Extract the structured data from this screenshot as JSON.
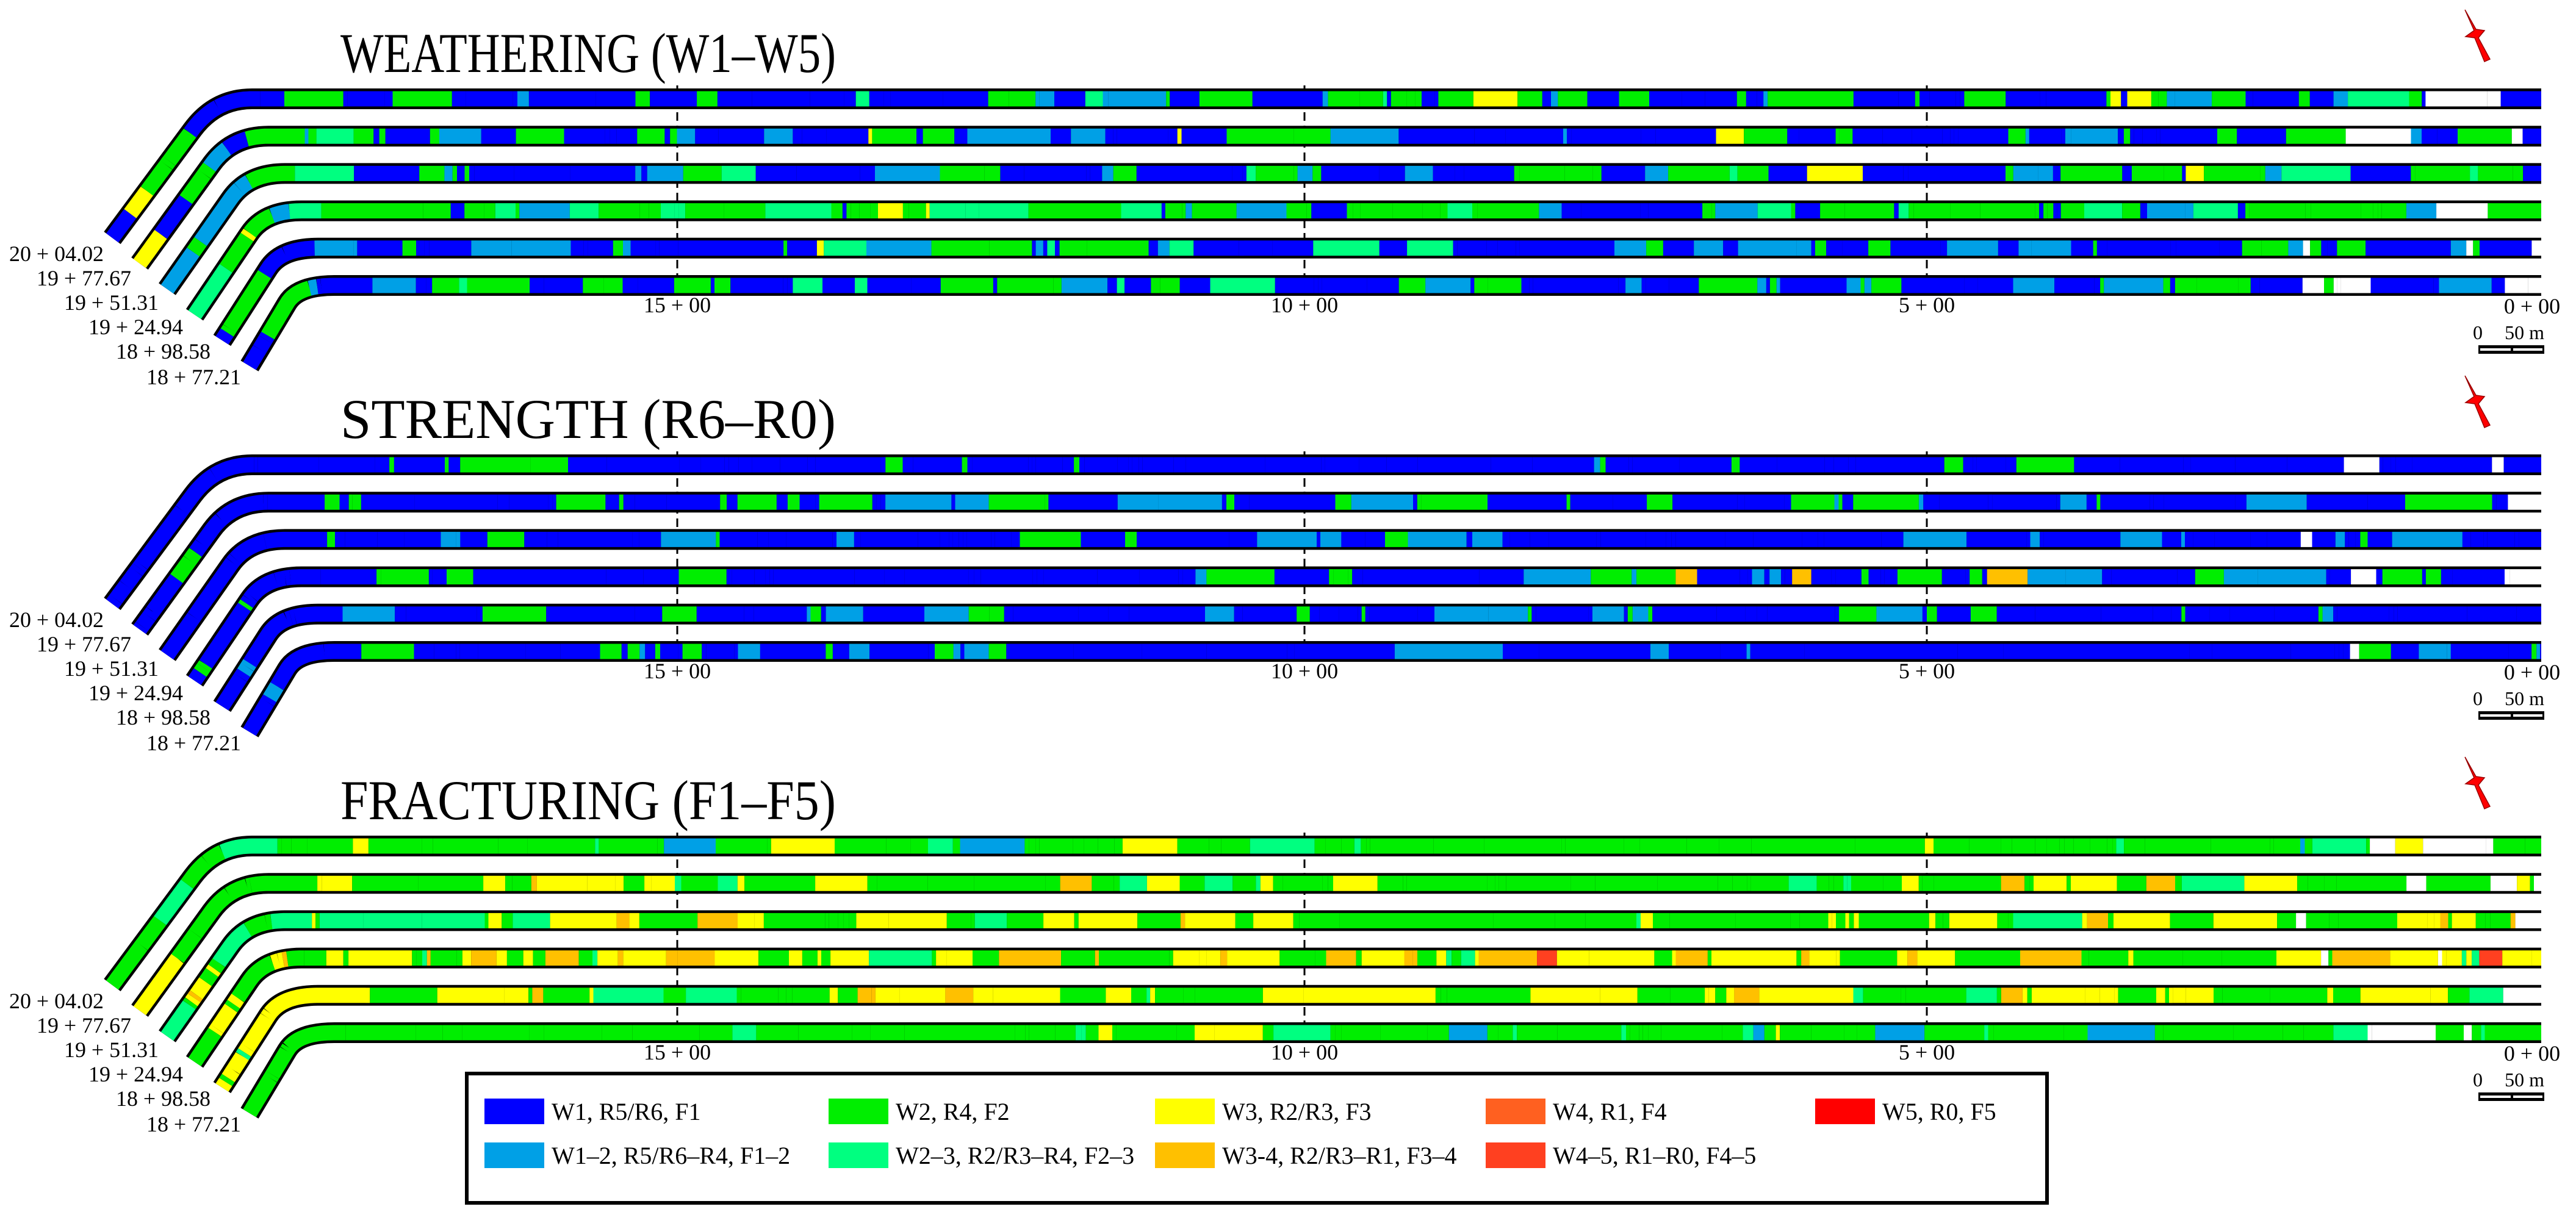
{
  "panels": [
    {
      "title": "WEATHERING (W1–W5)",
      "tracks": [
        {
          "station": "20 + 04.02",
          "mix": {
            "W1": 5,
            "W1-2": 1.2,
            "W2": 3,
            "W2-3": 0.5,
            "W3": 0.3
          }
        },
        {
          "station": "19 + 77.67",
          "mix": {
            "W1": 6,
            "W1-2": 1.5,
            "W2": 2,
            "W2-3": 0.4,
            "W3": 0.2
          }
        },
        {
          "station": "19 + 51.31",
          "mix": {
            "W1": 4,
            "W1-2": 1.5,
            "W2": 3.5,
            "W2-3": 0.8,
            "W3": 0.2
          }
        },
        {
          "station": "19 + 24.94",
          "mix": {
            "W1": 1,
            "W1-2": 1,
            "W2": 6,
            "W2-3": 1.5,
            "W3": 0.6
          }
        },
        {
          "station": "18 + 98.58",
          "mix": {
            "W1": 6,
            "W1-2": 1,
            "W2": 2.5,
            "W2-3": 0.5,
            "W3": 0.2
          }
        },
        {
          "station": "18 + 77.21",
          "mix": {
            "W1": 6,
            "W1-2": 1.2,
            "W2": 2.2,
            "W2-3": 0.4,
            "W3": 0.1
          }
        }
      ]
    },
    {
      "title": "STRENGTH (R6–R0)",
      "tracks": [
        {
          "station": "20 + 04.02",
          "mix": {
            "W1": 9,
            "W1-2": 0.6,
            "W2": 0.8
          }
        },
        {
          "station": "19 + 77.67",
          "mix": {
            "W1": 6,
            "W1-2": 1,
            "W2": 2.5
          }
        },
        {
          "station": "19 + 51.31",
          "mix": {
            "W1": 8,
            "W1-2": 0.8,
            "W2": 1
          }
        },
        {
          "station": "19 + 24.94",
          "mix": {
            "W1": 7,
            "W1-2": 0.8,
            "W2": 2,
            "W3-4": 0.1
          }
        },
        {
          "station": "18 + 98.58",
          "mix": {
            "W1": 7,
            "W1-2": 1.5,
            "W2": 1.2
          }
        },
        {
          "station": "18 + 77.21",
          "mix": {
            "W1": 8,
            "W1-2": 1,
            "W2": 1
          }
        }
      ]
    },
    {
      "title": "FRACTURING (F1–F5)",
      "tracks": [
        {
          "station": "20 + 04.02",
          "mix": {
            "W2": 8,
            "W2-3": 0.6,
            "W1-2": 0.3,
            "W3": 0.4,
            "W4": 0.1
          }
        },
        {
          "station": "19 + 77.67",
          "mix": {
            "W2": 6,
            "W2-3": 1,
            "W3": 2,
            "W3-4": 0.3
          }
        },
        {
          "station": "19 + 51.31",
          "mix": {
            "W2": 5,
            "W2-3": 1,
            "W3": 3,
            "W3-4": 0.5,
            "W4": 0.2
          }
        },
        {
          "station": "19 + 24.94",
          "mix": {
            "W2": 3.5,
            "W2-3": 0.5,
            "W3": 4,
            "W3-4": 1,
            "W4-5": 0.3
          }
        },
        {
          "station": "18 + 98.58",
          "mix": {
            "W2": 4,
            "W2-3": 0.8,
            "W3": 4,
            "W3-4": 0.4
          }
        },
        {
          "station": "18 + 77.21",
          "mix": {
            "W2": 8,
            "W2-3": 1,
            "W1-2": 0.3,
            "W3": 0.4
          }
        }
      ]
    }
  ],
  "chainage_labels": [
    "15 + 00",
    "10 + 00",
    "5 + 00",
    "0 + 00"
  ],
  "scale_bar": {
    "zero": "0",
    "length": "50 m"
  },
  "north_arrow": {
    "icon": "north-arrow-icon",
    "color": "#ff0000"
  },
  "legend": [
    {
      "key": "W1",
      "label": "W1, R5/R6, F1",
      "color": "#0000ff"
    },
    {
      "key": "W2",
      "label": "W2, R4, F2",
      "color": "#00ee00"
    },
    {
      "key": "W3",
      "label": "W3, R2/R3, F3",
      "color": "#ffff00"
    },
    {
      "key": "W4",
      "label": "W4, R1, F4",
      "color": "#ff6020"
    },
    {
      "key": "W5",
      "label": "W5, R0, F5",
      "color": "#ff0000"
    },
    {
      "key": "W1-2",
      "label": "W1–2, R5/R6–R4, F1–2",
      "color": "#00a0e6"
    },
    {
      "key": "W2-3",
      "label": "W2–3, R2/R3–R4, F2–3",
      "color": "#00ff80"
    },
    {
      "key": "W3-4",
      "label": "W3-4, R2/R3–R1, F3–4",
      "color": "#ffc000"
    },
    {
      "key": "W4-5",
      "label": "W4–5, R1–R0, F4–5",
      "color": "#ff4020"
    }
  ]
}
